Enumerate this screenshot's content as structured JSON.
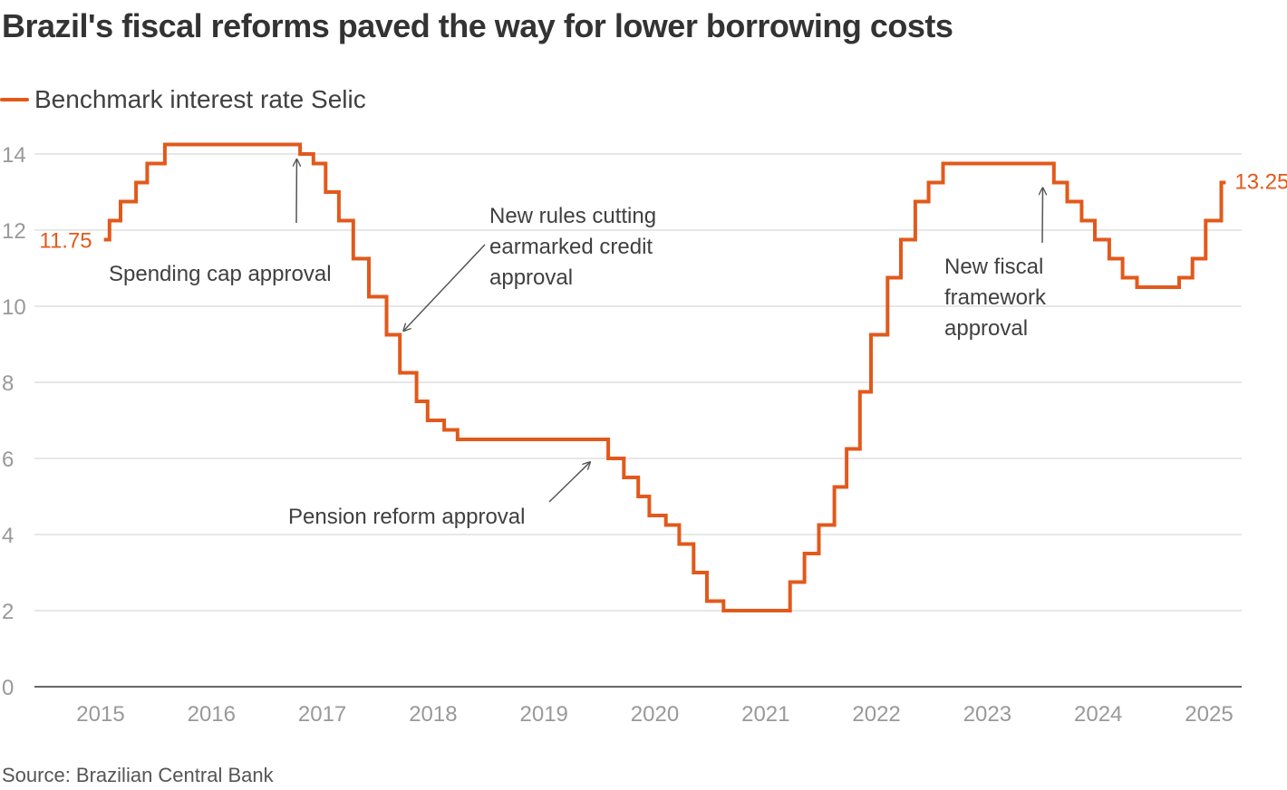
{
  "header": {
    "title": "Brazil's fiscal reforms paved the way for lower borrowing costs"
  },
  "legend": {
    "label": "Benchmark interest rate Selic",
    "color": "#e2591b"
  },
  "source": "Source: Brazilian Central Bank",
  "chart_data": {
    "type": "line",
    "subtype": "step",
    "title": "Brazil's fiscal reforms paved the way for lower borrowing costs",
    "ylim": [
      0,
      14.5
    ],
    "xlim": [
      2014.55,
      2025.45
    ],
    "y_ticks": [
      0,
      2,
      4,
      6,
      8,
      10,
      12,
      14
    ],
    "x_ticks": [
      2015,
      2016,
      2017,
      2018,
      2019,
      2020,
      2021,
      2022,
      2023,
      2024,
      2025
    ],
    "grid": true,
    "series": [
      {
        "name": "Benchmark interest rate Selic",
        "color": "#e2591b",
        "points": [
          [
            2015.03,
            11.75
          ],
          [
            2015.08,
            12.25
          ],
          [
            2015.18,
            12.75
          ],
          [
            2015.32,
            13.25
          ],
          [
            2015.42,
            13.75
          ],
          [
            2015.58,
            14.25
          ],
          [
            2016.8,
            14.0
          ],
          [
            2016.92,
            13.75
          ],
          [
            2017.03,
            13.0
          ],
          [
            2017.15,
            12.25
          ],
          [
            2017.28,
            11.25
          ],
          [
            2017.42,
            10.25
          ],
          [
            2017.58,
            9.25
          ],
          [
            2017.7,
            8.25
          ],
          [
            2017.85,
            7.5
          ],
          [
            2017.95,
            7.0
          ],
          [
            2018.1,
            6.75
          ],
          [
            2018.22,
            6.5
          ],
          [
            2019.58,
            6.0
          ],
          [
            2019.72,
            5.5
          ],
          [
            2019.85,
            5.0
          ],
          [
            2019.95,
            4.5
          ],
          [
            2020.1,
            4.25
          ],
          [
            2020.22,
            3.75
          ],
          [
            2020.35,
            3.0
          ],
          [
            2020.47,
            2.25
          ],
          [
            2020.62,
            2.0
          ],
          [
            2021.22,
            2.75
          ],
          [
            2021.35,
            3.5
          ],
          [
            2021.48,
            4.25
          ],
          [
            2021.62,
            5.25
          ],
          [
            2021.73,
            6.25
          ],
          [
            2021.85,
            7.75
          ],
          [
            2021.95,
            9.25
          ],
          [
            2022.1,
            10.75
          ],
          [
            2022.22,
            11.75
          ],
          [
            2022.35,
            12.75
          ],
          [
            2022.47,
            13.25
          ],
          [
            2022.6,
            13.75
          ],
          [
            2023.6,
            13.25
          ],
          [
            2023.72,
            12.75
          ],
          [
            2023.85,
            12.25
          ],
          [
            2023.97,
            11.75
          ],
          [
            2024.1,
            11.25
          ],
          [
            2024.22,
            10.75
          ],
          [
            2024.35,
            10.5
          ],
          [
            2024.73,
            10.75
          ],
          [
            2024.85,
            11.25
          ],
          [
            2024.97,
            12.25
          ],
          [
            2025.11,
            13.25
          ]
        ],
        "end_x": 2025.15
      }
    ],
    "labels": {
      "start": "11.75",
      "end": "13.25"
    },
    "annotations": [
      {
        "id": "spending-cap",
        "lines": [
          "Spending cap approval"
        ],
        "target": [
          2016.77,
          14.0
        ]
      },
      {
        "id": "earmarked-credit",
        "lines": [
          "New rules cutting",
          "earmarked credit",
          "approval"
        ],
        "target": [
          2017.7,
          9.25
        ]
      },
      {
        "id": "pension-reform",
        "lines": [
          "Pension reform approval"
        ],
        "target": [
          2019.45,
          6.0
        ]
      },
      {
        "id": "fiscal-framework",
        "lines": [
          "New fiscal",
          "framework",
          "approval"
        ],
        "target": [
          2023.5,
          13.25
        ]
      }
    ]
  }
}
